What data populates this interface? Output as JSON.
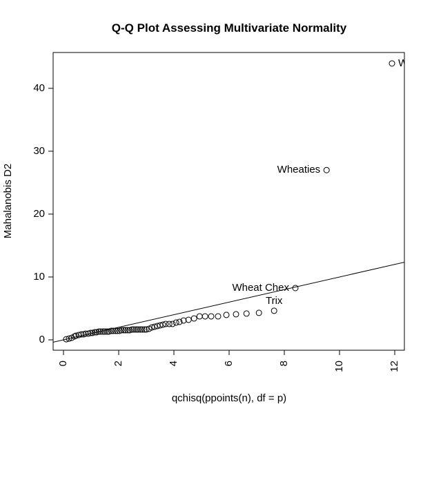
{
  "chart_data": {
    "type": "scatter",
    "title": "Q-Q Plot Assessing Multivariate Normality",
    "x_label": "qchisq(ppoints(n), df = p)",
    "y_label": "Mahalanobis D2",
    "x": [
      0.1,
      0.2,
      0.3,
      0.4,
      0.45,
      0.55,
      0.65,
      0.73,
      0.8,
      0.9,
      0.98,
      1.05,
      1.13,
      1.2,
      1.28,
      1.35,
      1.43,
      1.5,
      1.58,
      1.65,
      1.73,
      1.8,
      1.88,
      1.95,
      2.03,
      2.1,
      2.18,
      2.25,
      2.33,
      2.4,
      2.48,
      2.55,
      2.63,
      2.7,
      2.78,
      2.85,
      2.93,
      3.0,
      3.1,
      3.2,
      3.3,
      3.4,
      3.5,
      3.6,
      3.7,
      3.83,
      3.95,
      4.08,
      4.2,
      4.35,
      4.53,
      4.73,
      4.93,
      5.13,
      5.35,
      5.6,
      5.9,
      6.25,
      6.63,
      7.08,
      7.63,
      8.4,
      9.53,
      11.9
    ],
    "values": [
      0.1,
      0.2,
      0.33,
      0.55,
      0.66,
      0.77,
      0.88,
      0.88,
      0.99,
      0.99,
      1.1,
      1.1,
      1.21,
      1.21,
      1.32,
      1.32,
      1.32,
      1.32,
      1.32,
      1.32,
      1.43,
      1.43,
      1.43,
      1.43,
      1.43,
      1.54,
      1.54,
      1.54,
      1.54,
      1.54,
      1.65,
      1.65,
      1.65,
      1.65,
      1.65,
      1.65,
      1.65,
      1.65,
      1.76,
      1.98,
      2.09,
      2.2,
      2.31,
      2.42,
      2.53,
      2.53,
      2.53,
      2.75,
      2.86,
      3.08,
      3.19,
      3.41,
      3.74,
      3.74,
      3.74,
      3.74,
      3.96,
      4.07,
      4.18,
      4.29,
      4.62,
      8.24,
      27.0,
      43.96
    ],
    "point_labels": [
      null,
      null,
      null,
      null,
      null,
      null,
      null,
      null,
      null,
      null,
      null,
      null,
      null,
      null,
      null,
      null,
      null,
      null,
      null,
      null,
      null,
      null,
      null,
      null,
      null,
      null,
      null,
      null,
      null,
      null,
      null,
      null,
      null,
      null,
      null,
      null,
      null,
      null,
      null,
      null,
      null,
      null,
      null,
      null,
      null,
      null,
      null,
      null,
      null,
      null,
      null,
      null,
      null,
      null,
      null,
      null,
      null,
      null,
      null,
      null,
      "Trix",
      "Wheat Chex",
      "Wheaties",
      "W"
    ],
    "color": "#000000",
    "reference_line": {
      "intercept": 0,
      "slope": 1
    },
    "xlim": [
      -0.375,
      12.35
    ],
    "ylim": [
      -1.65,
      45.7
    ],
    "xticks": [
      0,
      2,
      4,
      6,
      8,
      10,
      12
    ],
    "yticks": [
      0,
      10,
      20,
      30,
      40
    ]
  }
}
